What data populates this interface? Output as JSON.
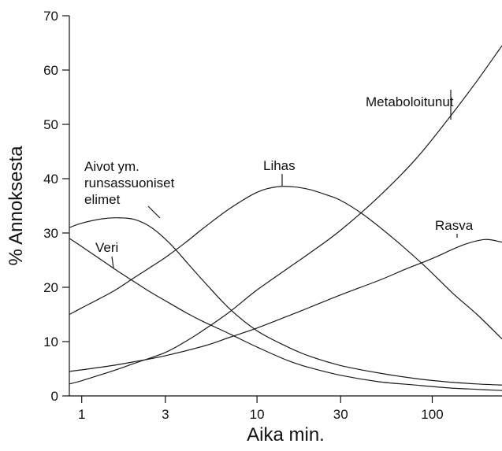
{
  "chart_data": {
    "type": "line",
    "title": "",
    "xlabel": "Aika min.",
    "ylabel": "% Annoksesta",
    "x_scale": "log",
    "xlim": [
      0.85,
      250
    ],
    "ylim": [
      0,
      70
    ],
    "grid": false,
    "x_ticks": [
      1,
      3,
      10,
      30,
      100
    ],
    "x_tick_labels": [
      "1",
      "3",
      "10",
      "30",
      "100"
    ],
    "y_ticks": [
      0,
      10,
      20,
      30,
      40,
      50,
      60,
      70
    ],
    "y_tick_labels": [
      "0",
      "10",
      "20",
      "30",
      "40",
      "50",
      "60",
      "70"
    ],
    "series": [
      {
        "name": "Aivot ym. runsassuoniset elimet",
        "x": [
          0.85,
          1.0,
          1.3,
          1.6,
          2.0,
          2.5,
          3.2,
          4.0,
          5.0,
          7.0,
          10,
          15,
          20,
          30,
          50,
          80,
          120,
          180,
          250
        ],
        "y": [
          31,
          31.8,
          32.6,
          32.8,
          32.5,
          31,
          28,
          24.5,
          21,
          16,
          12,
          9,
          7.3,
          5.6,
          4.2,
          3.2,
          2.6,
          2.2,
          2.0
        ]
      },
      {
        "name": "Veri",
        "x": [
          0.85,
          1.0,
          1.3,
          1.6,
          2.0,
          2.5,
          3.2,
          4.0,
          5.0,
          7.0,
          10,
          15,
          20,
          30,
          50,
          80,
          120,
          180,
          250
        ],
        "y": [
          29,
          27.5,
          25,
          23,
          21,
          19,
          17,
          15.2,
          13.6,
          11.4,
          9,
          6.5,
          5.2,
          3.8,
          2.6,
          2.0,
          1.5,
          1.2,
          1.0
        ]
      },
      {
        "name": "Lihas",
        "x": [
          0.85,
          1.0,
          1.5,
          2.0,
          3.0,
          4.0,
          5.0,
          7.0,
          10,
          13,
          16,
          20,
          25,
          30,
          40,
          60,
          90,
          130,
          180,
          250
        ],
        "y": [
          15,
          16.2,
          19.2,
          21.8,
          25.5,
          28.5,
          31,
          34.5,
          37.5,
          38.5,
          38.5,
          38,
          37,
          36,
          33.5,
          29,
          24,
          19,
          15,
          10.5
        ]
      },
      {
        "name": "Metaboloitunut",
        "x": [
          0.85,
          1.0,
          1.5,
          2.0,
          3.0,
          4.0,
          5.0,
          7.0,
          10,
          15,
          20,
          30,
          50,
          80,
          120,
          180,
          250
        ],
        "y": [
          2.2,
          2.8,
          4.6,
          6.0,
          8.0,
          10.2,
          12.2,
          15.5,
          19.5,
          23.5,
          26.3,
          30.5,
          36.8,
          43.5,
          50.5,
          58,
          64.5
        ]
      },
      {
        "name": "Rasva",
        "x": [
          0.85,
          1.0,
          1.5,
          2.0,
          3.0,
          5.0,
          7.0,
          10,
          15,
          20,
          30,
          50,
          70,
          100,
          150,
          200,
          250
        ],
        "y": [
          4.5,
          4.8,
          5.6,
          6.3,
          7.4,
          9.2,
          10.8,
          12.5,
          14.7,
          16.3,
          18.6,
          21.3,
          23.3,
          25.3,
          27.8,
          28.8,
          28.3
        ]
      }
    ],
    "annotations": [
      {
        "lines": [
          "Aivot ym.",
          "runsassuoniset",
          "elimet"
        ],
        "series": "Aivot ym. runsassuoniset elimet",
        "anchor_x": 1.9,
        "anchor_y": 32.6
      },
      {
        "lines": [
          "Veri"
        ],
        "series": "Veri",
        "anchor_x": 1.4,
        "anchor_y": 24
      },
      {
        "lines": [
          "Lihas"
        ],
        "series": "Lihas",
        "anchor_x": 15,
        "anchor_y": 38.5
      },
      {
        "lines": [
          "Metaboloitunut"
        ],
        "series": "Metaboloitunut",
        "anchor_x": 158,
        "anchor_y": 50
      },
      {
        "lines": [
          "Rasva"
        ],
        "series": "Rasva",
        "anchor_x": 185,
        "anchor_y": 28.8
      }
    ]
  }
}
